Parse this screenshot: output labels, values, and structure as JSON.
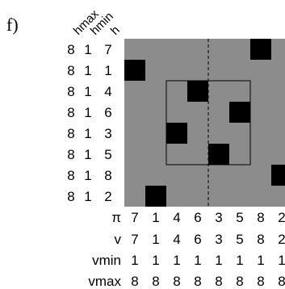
{
  "panel_label": "f)",
  "column_headers": [
    "hmax",
    "hmin",
    "h"
  ],
  "rows": [
    {
      "hmax": "8",
      "hmin": "1",
      "h": "7"
    },
    {
      "hmax": "8",
      "hmin": "1",
      "h": "1"
    },
    {
      "hmax": "8",
      "hmin": "1",
      "h": "4"
    },
    {
      "hmax": "8",
      "hmin": "1",
      "h": "6"
    },
    {
      "hmax": "8",
      "hmin": "1",
      "h": "3"
    },
    {
      "hmax": "8",
      "hmin": "1",
      "h": "5"
    },
    {
      "hmax": "8",
      "hmin": "1",
      "h": "8"
    },
    {
      "hmax": "8",
      "hmin": "1",
      "h": "2"
    }
  ],
  "bottom_rows": [
    {
      "label": "π",
      "values": [
        "7",
        "1",
        "4",
        "6",
        "3",
        "5",
        "8",
        "2"
      ]
    },
    {
      "label": "v",
      "values": [
        "7",
        "1",
        "4",
        "6",
        "3",
        "5",
        "8",
        "2"
      ]
    },
    {
      "label": "vmin",
      "values": [
        "1",
        "1",
        "1",
        "1",
        "1",
        "1",
        "1",
        "1"
      ]
    },
    {
      "label": "vmax",
      "values": [
        "8",
        "8",
        "8",
        "8",
        "8",
        "8",
        "8",
        "8"
      ]
    }
  ],
  "grid": {
    "size": 8,
    "cells": [
      [
        0,
        6
      ],
      [
        1,
        0
      ],
      [
        2,
        3
      ],
      [
        3,
        5
      ],
      [
        4,
        2
      ],
      [
        5,
        4
      ],
      [
        6,
        7
      ],
      [
        7,
        1
      ]
    ],
    "box": {
      "row_start": 2,
      "row_end": 6,
      "col_start": 2,
      "col_end": 6
    },
    "divider_after_col": 4,
    "background_color": "#8c8c8c",
    "cell_color": "#000000"
  }
}
